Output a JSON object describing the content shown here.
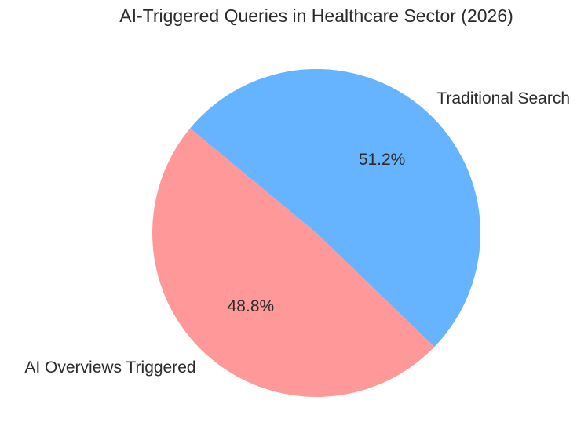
{
  "title": "AI-Triggered Queries in Healthcare Sector (2026)",
  "chart_data": {
    "type": "pie",
    "title": "AI-Triggered Queries in Healthcare Sector (2026)",
    "labels": [
      "Traditional Search",
      "AI Overviews Triggered"
    ],
    "values": [
      51.2,
      48.8
    ],
    "percent_labels": [
      "51.2%",
      "48.8%"
    ],
    "colors": [
      "#66b3ff",
      "#ff9999"
    ],
    "start_angle_deg": -44,
    "direction": "counterclockwise",
    "legend": "none",
    "label_position": "outside",
    "percent_position": "inside",
    "background": "#ffffff",
    "text_color": "#2b2b2b"
  }
}
